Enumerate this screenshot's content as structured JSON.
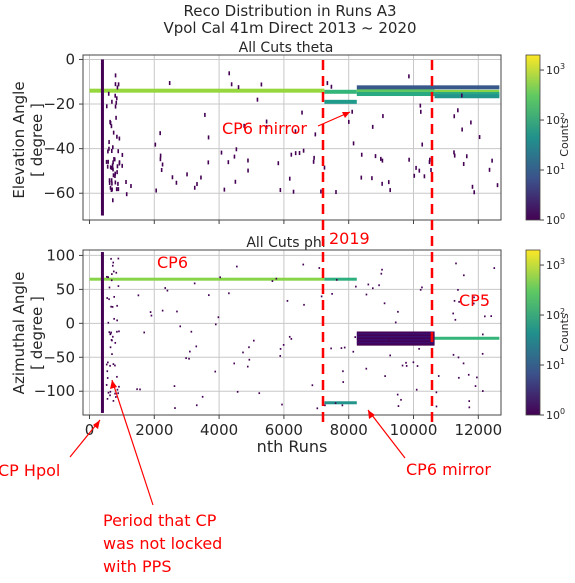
{
  "figure": {
    "title_line1": "Reco Distribution in Runs A3",
    "title_line2": "Vpol Cal 41m Direct 2013 ~ 2020",
    "xlabel": "nth Runs"
  },
  "chart_data": [
    {
      "type": "heatmap",
      "title": "All Cuts theta",
      "ylabel_line1": "Elevation Angle",
      "ylabel_line2": "[ degree ]",
      "xlim": [
        -200,
        12700
      ],
      "ylim": [
        -72,
        2
      ],
      "xticks": [
        0,
        2000,
        4000,
        6000,
        8000,
        10000,
        12000
      ],
      "xticklabels": [
        "0",
        "2000",
        "4000",
        "6000",
        "8000",
        "10000",
        "12000"
      ],
      "yticks": [
        0,
        -20,
        -40,
        -60
      ],
      "yticklabels": [
        "0",
        "−20",
        "−40",
        "−60"
      ],
      "grid": true,
      "colorbar": {
        "label": "Counts",
        "scale": "log",
        "range": [
          1,
          2000
        ],
        "ticks": [
          "10",
          "10",
          "10",
          "10"
        ],
        "exponents": [
          "0",
          "1",
          "2",
          "3"
        ]
      },
      "bands": [
        {
          "x": [
            0,
            7250
          ],
          "y": -14,
          "count": 600
        },
        {
          "x": [
            7250,
            8250
          ],
          "y": -14.5,
          "count": 150
        },
        {
          "x": [
            8250,
            10650
          ],
          "y": -14,
          "count": 300
        },
        {
          "x": [
            10650,
            12650
          ],
          "y": -14.5,
          "count": 500
        },
        {
          "x": [
            7250,
            8250
          ],
          "y": -19,
          "count": 60
        },
        {
          "x": [
            8250,
            12650
          ],
          "y": -15.5,
          "count": 100
        },
        {
          "x": [
            10650,
            12650
          ],
          "y": -16.5,
          "count": 50
        },
        {
          "x": [
            8250,
            12650
          ],
          "y": -12.5,
          "count": 8
        }
      ],
      "annotations": [
        {
          "text": "CP6 mirror",
          "x": 3950,
          "y": -36
        }
      ]
    },
    {
      "type": "heatmap",
      "title": "All Cuts phi",
      "ylabel_line1": "Azimuthal Angle",
      "ylabel_line2": "[ degree ]",
      "xlim": [
        -200,
        12700
      ],
      "ylim": [
        -135,
        108
      ],
      "xticks": [
        0,
        2000,
        4000,
        6000,
        8000,
        10000,
        12000
      ],
      "xticklabels": [
        "0",
        "2000",
        "4000",
        "6000",
        "8000",
        "10000",
        "12000"
      ],
      "yticks": [
        100,
        50,
        0,
        -50,
        -100
      ],
      "yticklabels": [
        "100",
        "50",
        "0",
        "−50",
        "−100"
      ],
      "grid": true,
      "colorbar": {
        "label": "Counts",
        "scale": "log",
        "range": [
          1,
          2000
        ],
        "ticks": [
          "10",
          "10",
          "10",
          "10"
        ],
        "exponents": [
          "0",
          "1",
          "2",
          "3"
        ]
      },
      "bands": [
        {
          "x": [
            0,
            7250
          ],
          "y": 65,
          "count": 500
        },
        {
          "x": [
            7250,
            8250
          ],
          "y": 65,
          "count": 120
        },
        {
          "x": [
            8250,
            10650
          ],
          "y": -20,
          "count": 200
        },
        {
          "x": [
            10650,
            12650
          ],
          "y": -22,
          "count": 150
        },
        {
          "x": [
            7250,
            8250
          ],
          "y": -117,
          "count": 50
        }
      ],
      "annotations": [
        {
          "text": "CP6",
          "x": 2100,
          "y": 78
        },
        {
          "text": "2019",
          "x": 8300,
          "y": 112
        },
        {
          "text": "CP5",
          "x": 11300,
          "y": 30
        }
      ]
    }
  ],
  "annotations": {
    "cp_hpol": "CP Hpol",
    "cp6_mirror_bottom": "CP6 mirror",
    "period_line1": "Period that CP",
    "period_line2": "was not locked",
    "period_line3": "with PPS"
  },
  "colors": {
    "annotation": "#ff0000",
    "viridis_low": "#440154",
    "viridis_mid": "#21918c",
    "viridis_high": "#fde725"
  }
}
